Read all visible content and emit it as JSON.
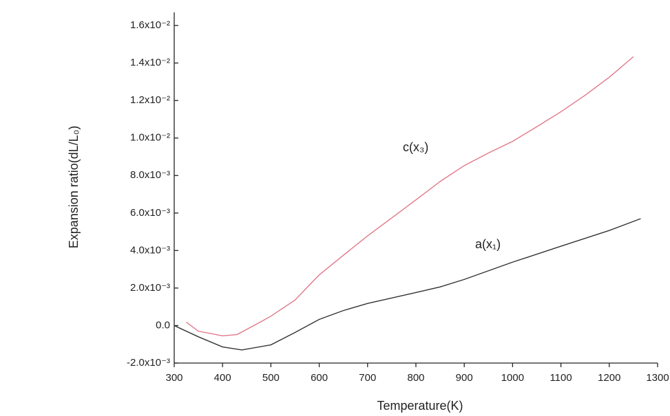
{
  "chart_data": {
    "type": "line",
    "xlabel": "Temperature(K)",
    "ylabel": "Expansion ratio(dL/L₀)",
    "xlim": [
      300,
      1300
    ],
    "xticks": [
      300,
      400,
      500,
      600,
      700,
      800,
      900,
      1000,
      1100,
      1200,
      1300
    ],
    "ylim": [
      -0.002,
      0.0167
    ],
    "yticks": [
      {
        "value": -0.002,
        "label": "-2.0x10⁻³"
      },
      {
        "value": 0,
        "label": "0.0"
      },
      {
        "value": 0.002,
        "label": "2.0x10⁻³"
      },
      {
        "value": 0.004,
        "label": "4.0x10⁻³"
      },
      {
        "value": 0.006,
        "label": "6.0x10⁻³"
      },
      {
        "value": 0.008,
        "label": "8.0x10⁻³"
      },
      {
        "value": 0.01,
        "label": "1.0x10⁻²"
      },
      {
        "value": 0.012,
        "label": "1.2x10⁻²"
      },
      {
        "value": 0.014,
        "label": "1.4x10⁻²"
      },
      {
        "value": 0.016,
        "label": "1.6x10⁻²"
      }
    ],
    "series": [
      {
        "name": "a(x₁)",
        "color": "#333333",
        "x": [
          300,
          350,
          400,
          440,
          500,
          550,
          600,
          650,
          700,
          800,
          850,
          900,
          1000,
          1100,
          1200,
          1265
        ],
        "values": [
          0.0,
          -0.0006,
          -0.00114,
          -0.0013,
          -0.00103,
          -0.00037,
          0.00033,
          0.0008,
          0.00118,
          0.00176,
          0.00206,
          0.00246,
          0.00338,
          0.00423,
          0.00507,
          0.0057
        ]
      },
      {
        "name": "c(x₃)",
        "color": "#e0788a",
        "x": [
          325,
          350,
          400,
          430,
          470,
          500,
          550,
          580,
          600,
          650,
          700,
          750,
          800,
          850,
          900,
          950,
          1000,
          1050,
          1100,
          1150,
          1200,
          1250
        ],
        "values": [
          0.00018,
          -0.0003,
          -0.00055,
          -0.00048,
          7e-05,
          0.0005,
          0.00136,
          0.00217,
          0.0027,
          0.00375,
          0.00478,
          0.00574,
          0.0067,
          0.00768,
          0.00853,
          0.0092,
          0.00982,
          0.0106,
          0.0114,
          0.01228,
          0.01324,
          0.01434
        ]
      }
    ]
  }
}
